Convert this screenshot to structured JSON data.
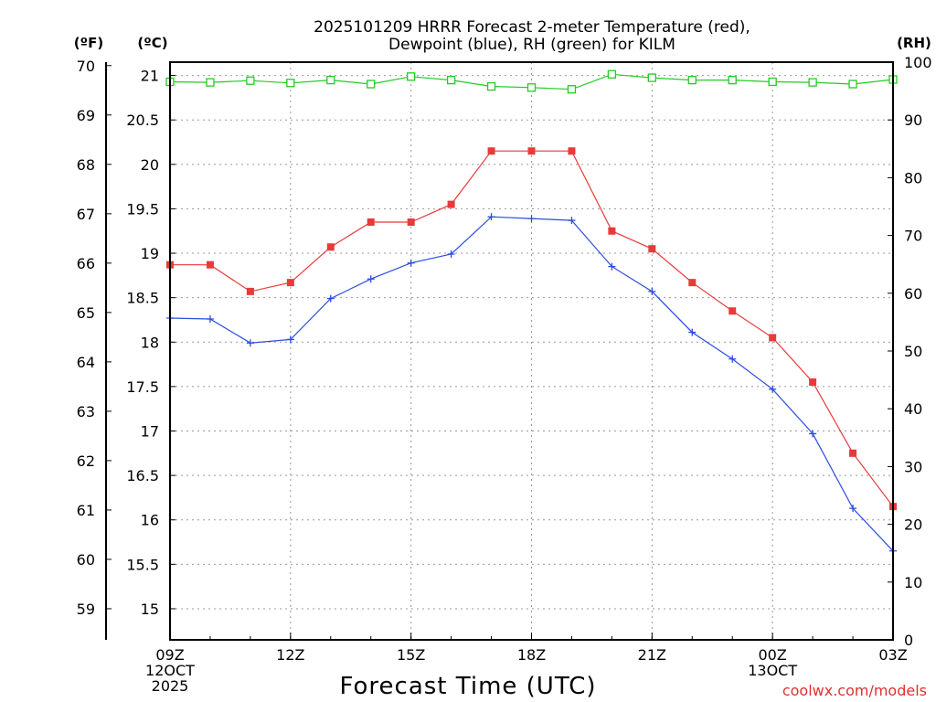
{
  "chart_data": {
    "type": "line",
    "title_lines": [
      "2025101209 HRRR Forecast 2-meter Temperature (red),",
      "Dewpoint (blue), RH (green) for KILM"
    ],
    "xlabel": "Forecast Time (UTC)",
    "credit": "coolwx.com/models",
    "units": {
      "fahrenheit": "(ºF)",
      "celsius": "(ºC)",
      "rh": "(RH)"
    },
    "hours": [
      0,
      1,
      2,
      3,
      4,
      5,
      6,
      7,
      8,
      9,
      10,
      11,
      12,
      13,
      14,
      15,
      16,
      17,
      18
    ],
    "x_ticks": [
      {
        "hour": 0,
        "lines": [
          "09Z",
          "12OCT",
          "2025"
        ]
      },
      {
        "hour": 3,
        "lines": [
          "12Z"
        ]
      },
      {
        "hour": 6,
        "lines": [
          "15Z"
        ]
      },
      {
        "hour": 9,
        "lines": [
          "18Z"
        ]
      },
      {
        "hour": 12,
        "lines": [
          "21Z"
        ]
      },
      {
        "hour": 15,
        "lines": [
          "00Z",
          "13OCT"
        ]
      },
      {
        "hour": 18,
        "lines": [
          "03Z"
        ]
      }
    ],
    "celsius_ticks": [
      "15",
      "15.5",
      "16",
      "16.5",
      "17",
      "17.5",
      "18",
      "18.5",
      "19",
      "19.5",
      "20",
      "20.5",
      "21"
    ],
    "fahrenheit_ticks": [
      "59",
      "60",
      "61",
      "62",
      "63",
      "64",
      "65",
      "66",
      "67",
      "68",
      "69",
      "70"
    ],
    "rh_ticks": [
      "0",
      "10",
      "20",
      "30",
      "40",
      "50",
      "60",
      "70",
      "80",
      "90",
      "100"
    ],
    "ylim_celsius": [
      14.65,
      21.15
    ],
    "ylim_rh": [
      0,
      100
    ],
    "series": [
      {
        "name": "Temperature",
        "color": "#e83a3a",
        "marker": "filled-square",
        "axis": "celsius",
        "values": [
          18.87,
          18.87,
          18.57,
          18.67,
          19.07,
          19.35,
          19.35,
          19.55,
          20.15,
          20.15,
          20.15,
          19.25,
          19.05,
          18.67,
          18.35,
          18.05,
          17.55,
          16.75,
          16.15
        ]
      },
      {
        "name": "Dewpoint",
        "color": "#2a4de0",
        "marker": "plus",
        "axis": "celsius",
        "values": [
          18.27,
          18.26,
          17.99,
          18.03,
          18.49,
          18.71,
          18.89,
          18.99,
          19.41,
          19.39,
          19.37,
          18.85,
          18.57,
          18.11,
          17.81,
          17.47,
          16.97,
          16.13,
          15.65
        ]
      },
      {
        "name": "RH",
        "color": "#22cc22",
        "marker": "open-square",
        "axis": "rh",
        "values": [
          96.6,
          96.5,
          96.8,
          96.4,
          96.9,
          96.2,
          97.5,
          96.9,
          95.8,
          95.6,
          95.3,
          97.9,
          97.3,
          96.9,
          96.9,
          96.6,
          96.5,
          96.2,
          97.0
        ]
      }
    ]
  }
}
